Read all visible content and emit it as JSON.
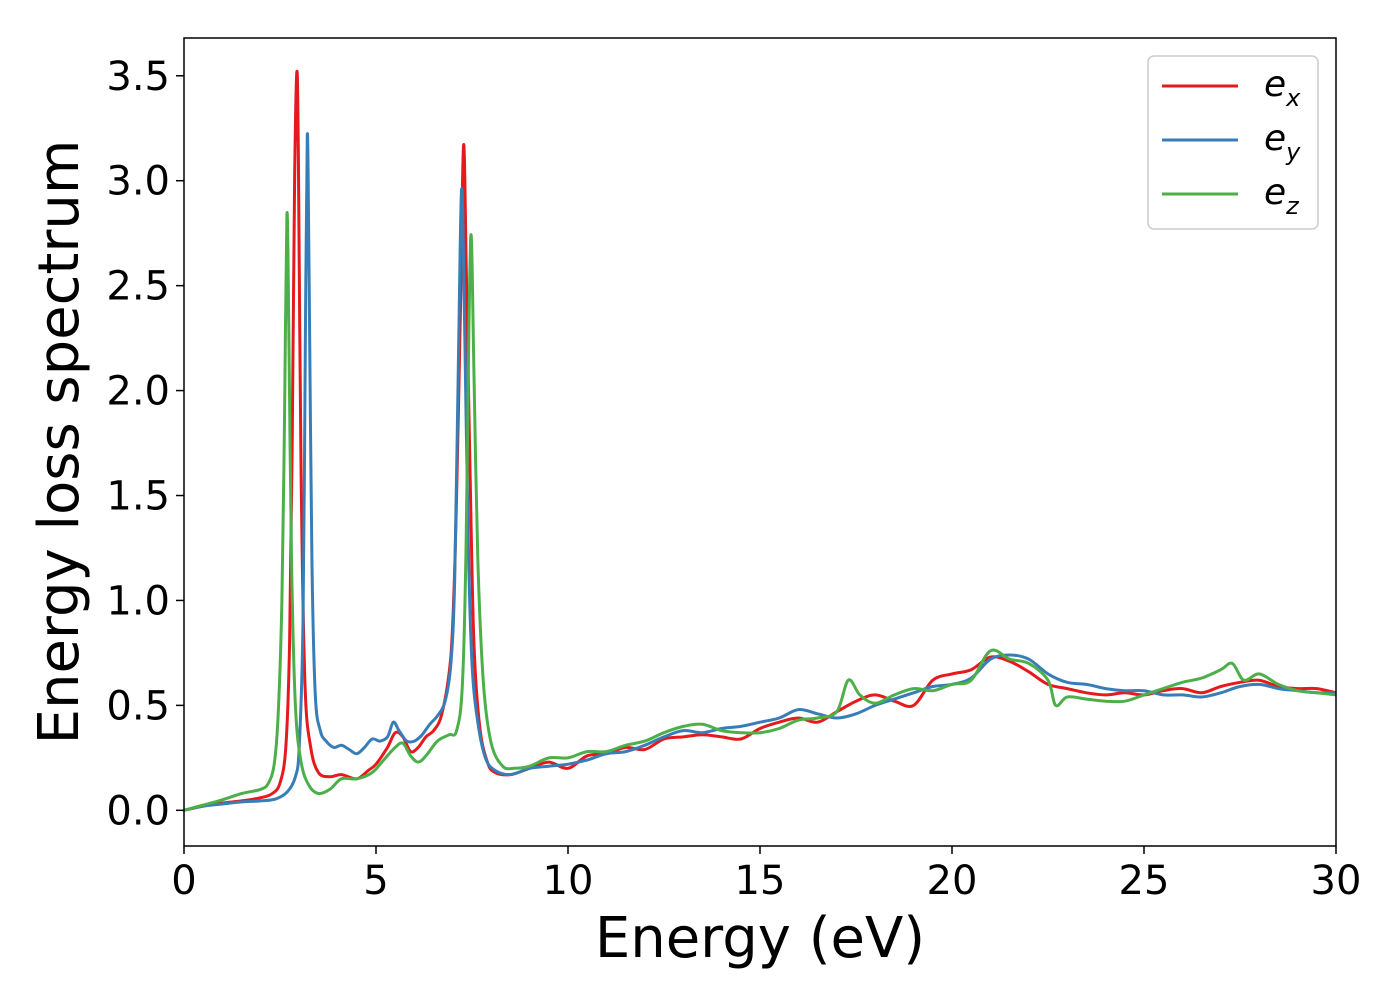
{
  "chart_data": {
    "type": "line",
    "title": "",
    "xlabel": "Energy (eV)",
    "ylabel": "Energy loss spectrum",
    "xlim": [
      0,
      30
    ],
    "ylim": [
      -0.17,
      3.68
    ],
    "xticks": [
      0,
      5,
      10,
      15,
      20,
      25,
      30
    ],
    "xtick_labels": [
      "0",
      "5",
      "10",
      "15",
      "20",
      "25",
      "30"
    ],
    "yticks": [
      0.0,
      0.5,
      1.0,
      1.5,
      2.0,
      2.5,
      3.0,
      3.5
    ],
    "ytick_labels": [
      "0.0",
      "0.5",
      "1.0",
      "1.5",
      "2.0",
      "2.5",
      "3.0",
      "3.5"
    ],
    "grid": false,
    "legend_position": "top-right",
    "series": [
      {
        "name_base": "e",
        "name_sub": "x",
        "color": "#e41a1c",
        "points": [
          [
            0,
            0.0
          ],
          [
            0.5,
            0.02
          ],
          [
            1.0,
            0.035
          ],
          [
            1.5,
            0.045
          ],
          [
            2.0,
            0.06
          ],
          [
            2.3,
            0.08
          ],
          [
            2.5,
            0.13
          ],
          [
            2.65,
            0.3
          ],
          [
            2.75,
            0.8
          ],
          [
            2.82,
            1.8
          ],
          [
            2.88,
            3.0
          ],
          [
            2.94,
            3.52
          ],
          [
            2.98,
            3.1
          ],
          [
            3.05,
            1.6
          ],
          [
            3.15,
            0.6
          ],
          [
            3.3,
            0.3
          ],
          [
            3.5,
            0.18
          ],
          [
            3.8,
            0.16
          ],
          [
            4.1,
            0.17
          ],
          [
            4.5,
            0.15
          ],
          [
            4.8,
            0.19
          ],
          [
            5.0,
            0.22
          ],
          [
            5.3,
            0.3
          ],
          [
            5.5,
            0.37
          ],
          [
            5.7,
            0.35
          ],
          [
            5.9,
            0.28
          ],
          [
            6.1,
            0.3
          ],
          [
            6.3,
            0.35
          ],
          [
            6.5,
            0.38
          ],
          [
            6.7,
            0.45
          ],
          [
            6.9,
            0.65
          ],
          [
            7.0,
            0.9
          ],
          [
            7.1,
            1.5
          ],
          [
            7.2,
            2.4
          ],
          [
            7.28,
            3.17
          ],
          [
            7.35,
            2.6
          ],
          [
            7.45,
            1.6
          ],
          [
            7.55,
            0.8
          ],
          [
            7.7,
            0.4
          ],
          [
            7.9,
            0.23
          ],
          [
            8.1,
            0.18
          ],
          [
            8.5,
            0.17
          ],
          [
            9.0,
            0.2
          ],
          [
            9.5,
            0.23
          ],
          [
            10.0,
            0.2
          ],
          [
            10.5,
            0.26
          ],
          [
            11.0,
            0.27
          ],
          [
            11.5,
            0.3
          ],
          [
            12.0,
            0.29
          ],
          [
            12.5,
            0.34
          ],
          [
            13.0,
            0.35
          ],
          [
            13.5,
            0.36
          ],
          [
            14.0,
            0.35
          ],
          [
            14.5,
            0.34
          ],
          [
            15.0,
            0.39
          ],
          [
            15.5,
            0.42
          ],
          [
            16.0,
            0.44
          ],
          [
            16.5,
            0.42
          ],
          [
            17.0,
            0.47
          ],
          [
            17.5,
            0.52
          ],
          [
            18.0,
            0.55
          ],
          [
            18.5,
            0.52
          ],
          [
            19.0,
            0.5
          ],
          [
            19.5,
            0.62
          ],
          [
            20.0,
            0.65
          ],
          [
            20.5,
            0.67
          ],
          [
            21.0,
            0.73
          ],
          [
            21.5,
            0.71
          ],
          [
            22.0,
            0.66
          ],
          [
            22.5,
            0.6
          ],
          [
            23.0,
            0.58
          ],
          [
            23.5,
            0.56
          ],
          [
            24.0,
            0.55
          ],
          [
            24.5,
            0.56
          ],
          [
            25.0,
            0.55
          ],
          [
            25.5,
            0.57
          ],
          [
            26.0,
            0.58
          ],
          [
            26.5,
            0.56
          ],
          [
            27.0,
            0.59
          ],
          [
            27.5,
            0.61
          ],
          [
            28.0,
            0.62
          ],
          [
            28.5,
            0.59
          ],
          [
            29.0,
            0.58
          ],
          [
            29.5,
            0.58
          ],
          [
            30.0,
            0.56
          ]
        ]
      },
      {
        "name_base": "e",
        "name_sub": "y",
        "color": "#377eb8",
        "points": [
          [
            0,
            0.0
          ],
          [
            0.5,
            0.02
          ],
          [
            1.0,
            0.03
          ],
          [
            1.5,
            0.04
          ],
          [
            2.0,
            0.045
          ],
          [
            2.4,
            0.055
          ],
          [
            2.7,
            0.09
          ],
          [
            2.9,
            0.16
          ],
          [
            3.0,
            0.3
          ],
          [
            3.1,
            0.9
          ],
          [
            3.16,
            2.2
          ],
          [
            3.21,
            3.22
          ],
          [
            3.26,
            2.5
          ],
          [
            3.33,
            1.2
          ],
          [
            3.42,
            0.55
          ],
          [
            3.55,
            0.38
          ],
          [
            3.7,
            0.33
          ],
          [
            3.9,
            0.3
          ],
          [
            4.1,
            0.31
          ],
          [
            4.3,
            0.29
          ],
          [
            4.5,
            0.27
          ],
          [
            4.7,
            0.3
          ],
          [
            4.9,
            0.34
          ],
          [
            5.1,
            0.33
          ],
          [
            5.3,
            0.35
          ],
          [
            5.45,
            0.42
          ],
          [
            5.6,
            0.38
          ],
          [
            5.8,
            0.33
          ],
          [
            6.0,
            0.33
          ],
          [
            6.2,
            0.36
          ],
          [
            6.4,
            0.41
          ],
          [
            6.6,
            0.45
          ],
          [
            6.8,
            0.52
          ],
          [
            6.95,
            0.7
          ],
          [
            7.05,
            1.1
          ],
          [
            7.15,
            2.2
          ],
          [
            7.23,
            2.96
          ],
          [
            7.3,
            2.4
          ],
          [
            7.4,
            1.3
          ],
          [
            7.5,
            0.7
          ],
          [
            7.65,
            0.42
          ],
          [
            7.85,
            0.25
          ],
          [
            8.1,
            0.19
          ],
          [
            8.5,
            0.17
          ],
          [
            9.0,
            0.2
          ],
          [
            9.5,
            0.21
          ],
          [
            10.0,
            0.22
          ],
          [
            10.5,
            0.24
          ],
          [
            11.0,
            0.27
          ],
          [
            11.5,
            0.28
          ],
          [
            12.0,
            0.31
          ],
          [
            12.5,
            0.35
          ],
          [
            13.0,
            0.38
          ],
          [
            13.5,
            0.37
          ],
          [
            14.0,
            0.39
          ],
          [
            14.5,
            0.4
          ],
          [
            15.0,
            0.42
          ],
          [
            15.5,
            0.44
          ],
          [
            16.0,
            0.48
          ],
          [
            16.5,
            0.46
          ],
          [
            17.0,
            0.44
          ],
          [
            17.5,
            0.46
          ],
          [
            18.0,
            0.5
          ],
          [
            18.5,
            0.53
          ],
          [
            19.0,
            0.56
          ],
          [
            19.5,
            0.59
          ],
          [
            20.0,
            0.6
          ],
          [
            20.5,
            0.63
          ],
          [
            21.0,
            0.72
          ],
          [
            21.5,
            0.74
          ],
          [
            22.0,
            0.72
          ],
          [
            22.5,
            0.65
          ],
          [
            23.0,
            0.61
          ],
          [
            23.5,
            0.6
          ],
          [
            24.0,
            0.58
          ],
          [
            24.5,
            0.57
          ],
          [
            25.0,
            0.57
          ],
          [
            25.5,
            0.55
          ],
          [
            26.0,
            0.55
          ],
          [
            26.5,
            0.54
          ],
          [
            27.0,
            0.56
          ],
          [
            27.5,
            0.59
          ],
          [
            28.0,
            0.6
          ],
          [
            28.5,
            0.58
          ],
          [
            29.0,
            0.57
          ],
          [
            29.5,
            0.56
          ],
          [
            30.0,
            0.56
          ]
        ]
      },
      {
        "name_base": "e",
        "name_sub": "z",
        "color": "#4daf4a",
        "points": [
          [
            0,
            0.0
          ],
          [
            0.5,
            0.025
          ],
          [
            1.0,
            0.05
          ],
          [
            1.5,
            0.08
          ],
          [
            2.0,
            0.1
          ],
          [
            2.2,
            0.13
          ],
          [
            2.35,
            0.22
          ],
          [
            2.45,
            0.45
          ],
          [
            2.55,
            1.0
          ],
          [
            2.62,
            1.9
          ],
          [
            2.68,
            2.84
          ],
          [
            2.73,
            2.3
          ],
          [
            2.8,
            1.2
          ],
          [
            2.9,
            0.5
          ],
          [
            3.05,
            0.23
          ],
          [
            3.25,
            0.12
          ],
          [
            3.5,
            0.08
          ],
          [
            3.8,
            0.1
          ],
          [
            4.1,
            0.15
          ],
          [
            4.5,
            0.15
          ],
          [
            4.9,
            0.18
          ],
          [
            5.2,
            0.24
          ],
          [
            5.5,
            0.3
          ],
          [
            5.7,
            0.32
          ],
          [
            5.9,
            0.26
          ],
          [
            6.1,
            0.23
          ],
          [
            6.3,
            0.26
          ],
          [
            6.6,
            0.33
          ],
          [
            6.9,
            0.36
          ],
          [
            7.1,
            0.38
          ],
          [
            7.25,
            0.6
          ],
          [
            7.35,
            1.3
          ],
          [
            7.42,
            2.3
          ],
          [
            7.48,
            2.74
          ],
          [
            7.55,
            2.1
          ],
          [
            7.65,
            1.2
          ],
          [
            7.8,
            0.6
          ],
          [
            8.0,
            0.32
          ],
          [
            8.3,
            0.21
          ],
          [
            8.6,
            0.2
          ],
          [
            9.0,
            0.21
          ],
          [
            9.5,
            0.25
          ],
          [
            10.0,
            0.25
          ],
          [
            10.5,
            0.28
          ],
          [
            11.0,
            0.28
          ],
          [
            11.5,
            0.31
          ],
          [
            12.0,
            0.33
          ],
          [
            12.5,
            0.37
          ],
          [
            13.0,
            0.4
          ],
          [
            13.5,
            0.41
          ],
          [
            14.0,
            0.38
          ],
          [
            14.5,
            0.37
          ],
          [
            15.0,
            0.37
          ],
          [
            15.5,
            0.39
          ],
          [
            16.0,
            0.43
          ],
          [
            16.5,
            0.44
          ],
          [
            17.0,
            0.47
          ],
          [
            17.3,
            0.62
          ],
          [
            17.6,
            0.55
          ],
          [
            18.0,
            0.51
          ],
          [
            18.5,
            0.55
          ],
          [
            19.0,
            0.58
          ],
          [
            19.5,
            0.57
          ],
          [
            20.0,
            0.6
          ],
          [
            20.5,
            0.62
          ],
          [
            21.0,
            0.76
          ],
          [
            21.5,
            0.72
          ],
          [
            22.0,
            0.7
          ],
          [
            22.5,
            0.62
          ],
          [
            22.7,
            0.5
          ],
          [
            23.0,
            0.54
          ],
          [
            23.5,
            0.53
          ],
          [
            24.0,
            0.52
          ],
          [
            24.5,
            0.52
          ],
          [
            25.0,
            0.55
          ],
          [
            25.5,
            0.58
          ],
          [
            26.0,
            0.61
          ],
          [
            26.5,
            0.63
          ],
          [
            27.0,
            0.67
          ],
          [
            27.3,
            0.7
          ],
          [
            27.6,
            0.62
          ],
          [
            28.0,
            0.65
          ],
          [
            28.5,
            0.6
          ],
          [
            29.0,
            0.57
          ],
          [
            29.5,
            0.56
          ],
          [
            30.0,
            0.55
          ]
        ]
      }
    ]
  }
}
